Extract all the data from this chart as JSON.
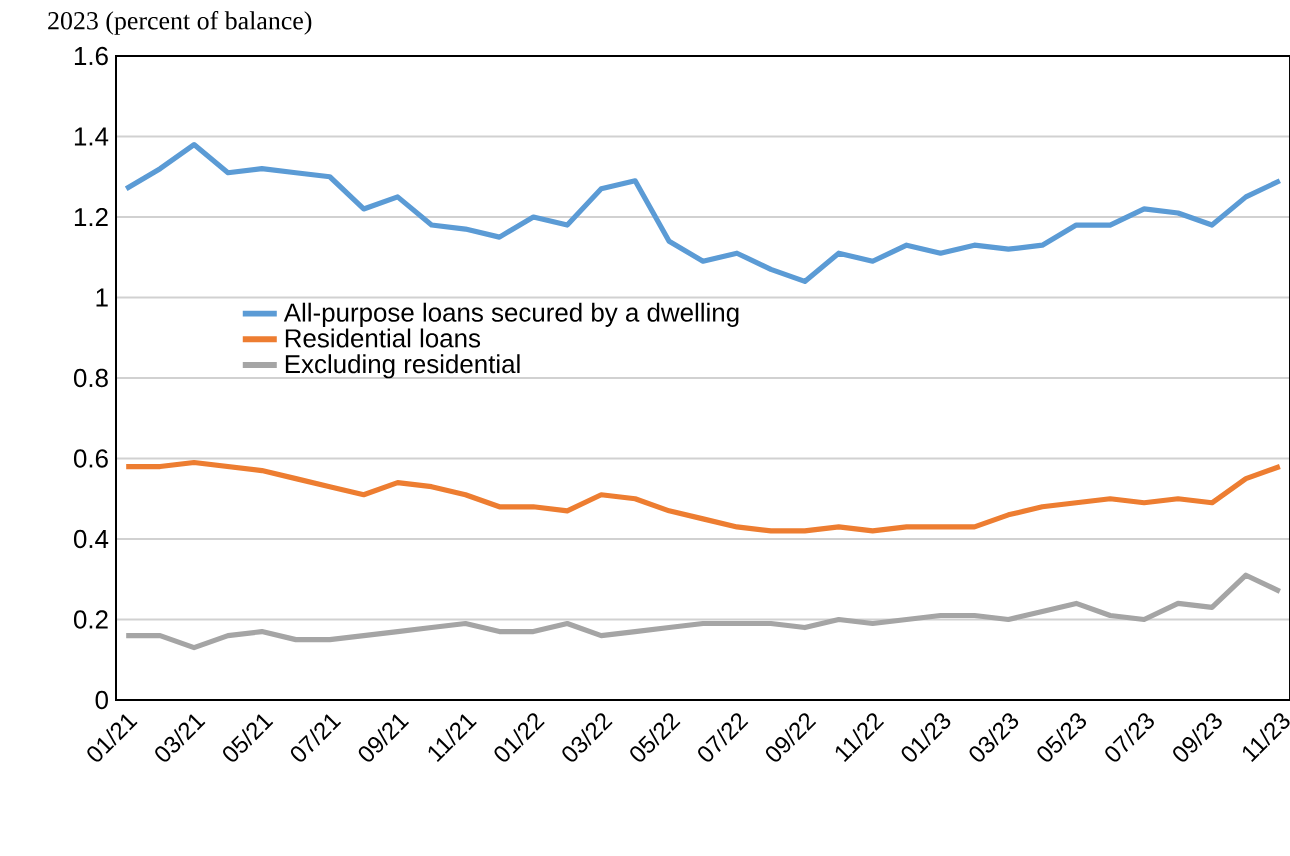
{
  "chart_data": {
    "type": "line",
    "title": "2023 (percent of balance)",
    "categories": [
      "01/21",
      null,
      "03/21",
      null,
      "05/21",
      null,
      "07/21",
      null,
      "09/21",
      null,
      "11/21",
      null,
      "01/22",
      null,
      "03/22",
      null,
      "05/22",
      null,
      "07/22",
      null,
      "09/22",
      null,
      "11/22",
      null,
      "01/23",
      null,
      "03/23",
      null,
      "05/23",
      null,
      "07/23",
      null,
      "09/23",
      null,
      "11/23"
    ],
    "series": [
      {
        "name": "All-purpose loans secured by a dwelling",
        "color": "#5b9bd5",
        "values": [
          1.27,
          1.32,
          1.38,
          1.31,
          1.32,
          1.31,
          1.3,
          1.22,
          1.25,
          1.18,
          1.17,
          1.15,
          1.2,
          1.18,
          1.27,
          1.29,
          1.14,
          1.09,
          1.11,
          1.07,
          1.04,
          1.11,
          1.09,
          1.13,
          1.11,
          1.13,
          1.12,
          1.13,
          1.18,
          1.18,
          1.22,
          1.21,
          1.18,
          1.25,
          1.29
        ]
      },
      {
        "name": "Residential loans",
        "color": "#ed7d31",
        "values": [
          0.58,
          0.58,
          0.59,
          0.58,
          0.57,
          0.55,
          0.53,
          0.51,
          0.54,
          0.53,
          0.51,
          0.48,
          0.48,
          0.47,
          0.51,
          0.5,
          0.47,
          0.45,
          0.43,
          0.42,
          0.42,
          0.43,
          0.42,
          0.43,
          0.43,
          0.43,
          0.46,
          0.48,
          0.49,
          0.5,
          0.49,
          0.5,
          0.49,
          0.55,
          0.58
        ]
      },
      {
        "name": "Excluding residential",
        "color": "#a5a5a5",
        "values": [
          0.16,
          0.16,
          0.13,
          0.16,
          0.17,
          0.15,
          0.15,
          0.16,
          0.17,
          0.18,
          0.19,
          0.17,
          0.17,
          0.19,
          0.16,
          0.17,
          0.18,
          0.19,
          0.19,
          0.19,
          0.18,
          0.2,
          0.19,
          0.2,
          0.21,
          0.21,
          0.2,
          0.22,
          0.24,
          0.21,
          0.2,
          0.24,
          0.23,
          0.31,
          0.27
        ]
      }
    ],
    "ylim": [
      0,
      1.6
    ],
    "yticks": [
      0,
      0.2,
      0.4,
      0.6,
      0.8,
      1,
      1.2,
      1.4,
      1.6
    ],
    "grid": "y",
    "legend": "left",
    "marker": "none",
    "line_style": "solid"
  }
}
